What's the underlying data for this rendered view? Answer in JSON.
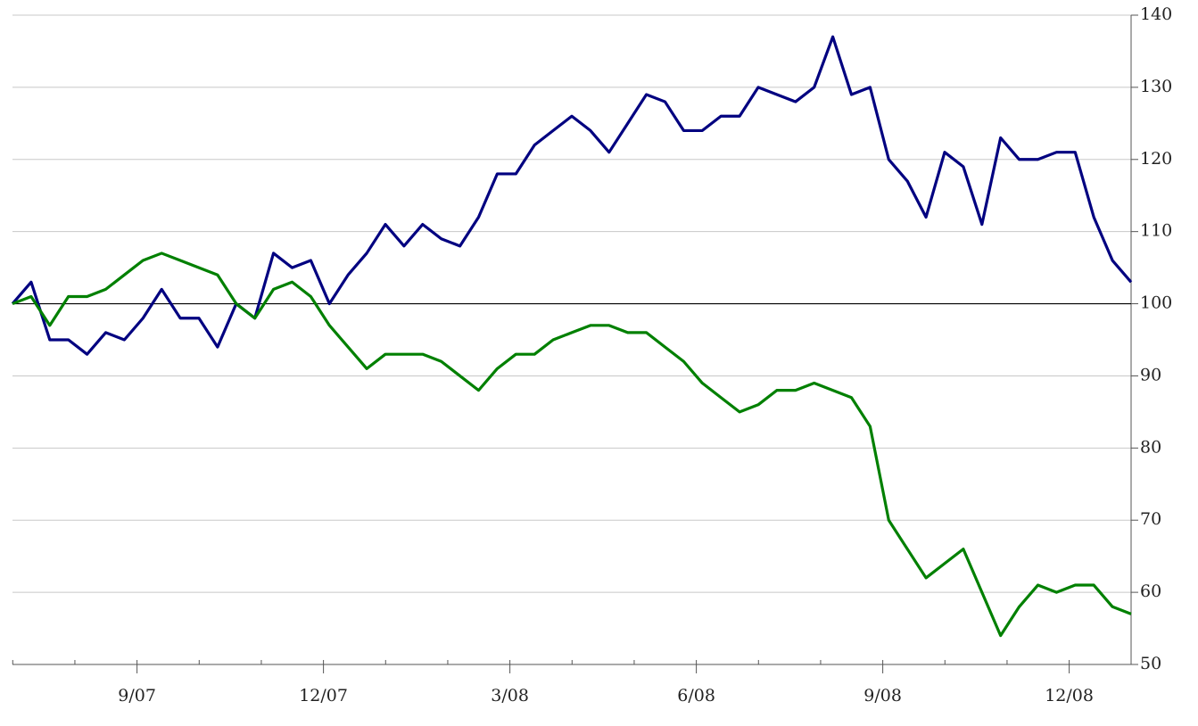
{
  "chart_data": {
    "type": "line",
    "x": [
      2007.5,
      2007.525,
      2007.55,
      2007.575,
      2007.6,
      2007.625,
      2007.65,
      2007.675,
      2007.7,
      2007.725,
      2007.75,
      2007.775,
      2007.8,
      2007.825,
      2007.85,
      2007.875,
      2007.9,
      2007.925,
      2007.95,
      2007.975,
      2008.0,
      2008.025,
      2008.05,
      2008.075,
      2008.1,
      2008.125,
      2008.15,
      2008.175,
      2008.2,
      2008.225,
      2008.25,
      2008.275,
      2008.3,
      2008.325,
      2008.35,
      2008.375,
      2008.4,
      2008.425,
      2008.45,
      2008.475,
      2008.5,
      2008.525,
      2008.55,
      2008.575,
      2008.6,
      2008.625,
      2008.65,
      2008.675,
      2008.7,
      2008.725,
      2008.75,
      2008.775,
      2008.8,
      2008.825,
      2008.85,
      2008.875,
      2008.9,
      2008.925,
      2008.95,
      2008.975,
      2009.0
    ],
    "series": [
      {
        "color": "#000080",
        "values": [
          100,
          103,
          95,
          95,
          93,
          96,
          95,
          98,
          102,
          98,
          98,
          94,
          100,
          98,
          107,
          105,
          106,
          100,
          104,
          107,
          111,
          108,
          111,
          109,
          108,
          112,
          118,
          118,
          122,
          124,
          126,
          124,
          121,
          125,
          129,
          128,
          124,
          124,
          126,
          126,
          130,
          129,
          128,
          130,
          137,
          129,
          130,
          120,
          117,
          112,
          121,
          119,
          111,
          123,
          120,
          120,
          121,
          121,
          112,
          106,
          103
        ]
      },
      {
        "color": "#008000",
        "values": [
          100,
          101,
          97,
          101,
          101,
          102,
          104,
          106,
          107,
          106,
          105,
          104,
          100,
          98,
          102,
          103,
          101,
          97,
          94,
          91,
          93,
          93,
          93,
          92,
          90,
          88,
          91,
          93,
          93,
          95,
          96,
          97,
          97,
          96,
          96,
          94,
          92,
          89,
          87,
          85,
          86,
          88,
          88,
          89,
          88,
          87,
          83,
          70,
          66,
          62,
          64,
          66,
          60,
          54,
          58,
          61,
          60,
          61,
          61,
          58,
          57
        ]
      }
    ],
    "xlim": [
      2007.5,
      2009.0
    ],
    "xticks": [
      {
        "value": 2007.667,
        "label": "9/07"
      },
      {
        "value": 2007.917,
        "label": "12/07"
      },
      {
        "value": 2008.167,
        "label": "3/08"
      },
      {
        "value": 2008.417,
        "label": "6/08"
      },
      {
        "value": 2008.667,
        "label": "9/08"
      },
      {
        "value": 2008.917,
        "label": "12/08"
      }
    ],
    "ylim": [
      50,
      140
    ],
    "yticks": [
      50,
      60,
      70,
      80,
      90,
      100,
      110,
      120,
      130,
      140
    ],
    "reference_line": 100,
    "grid": true
  }
}
